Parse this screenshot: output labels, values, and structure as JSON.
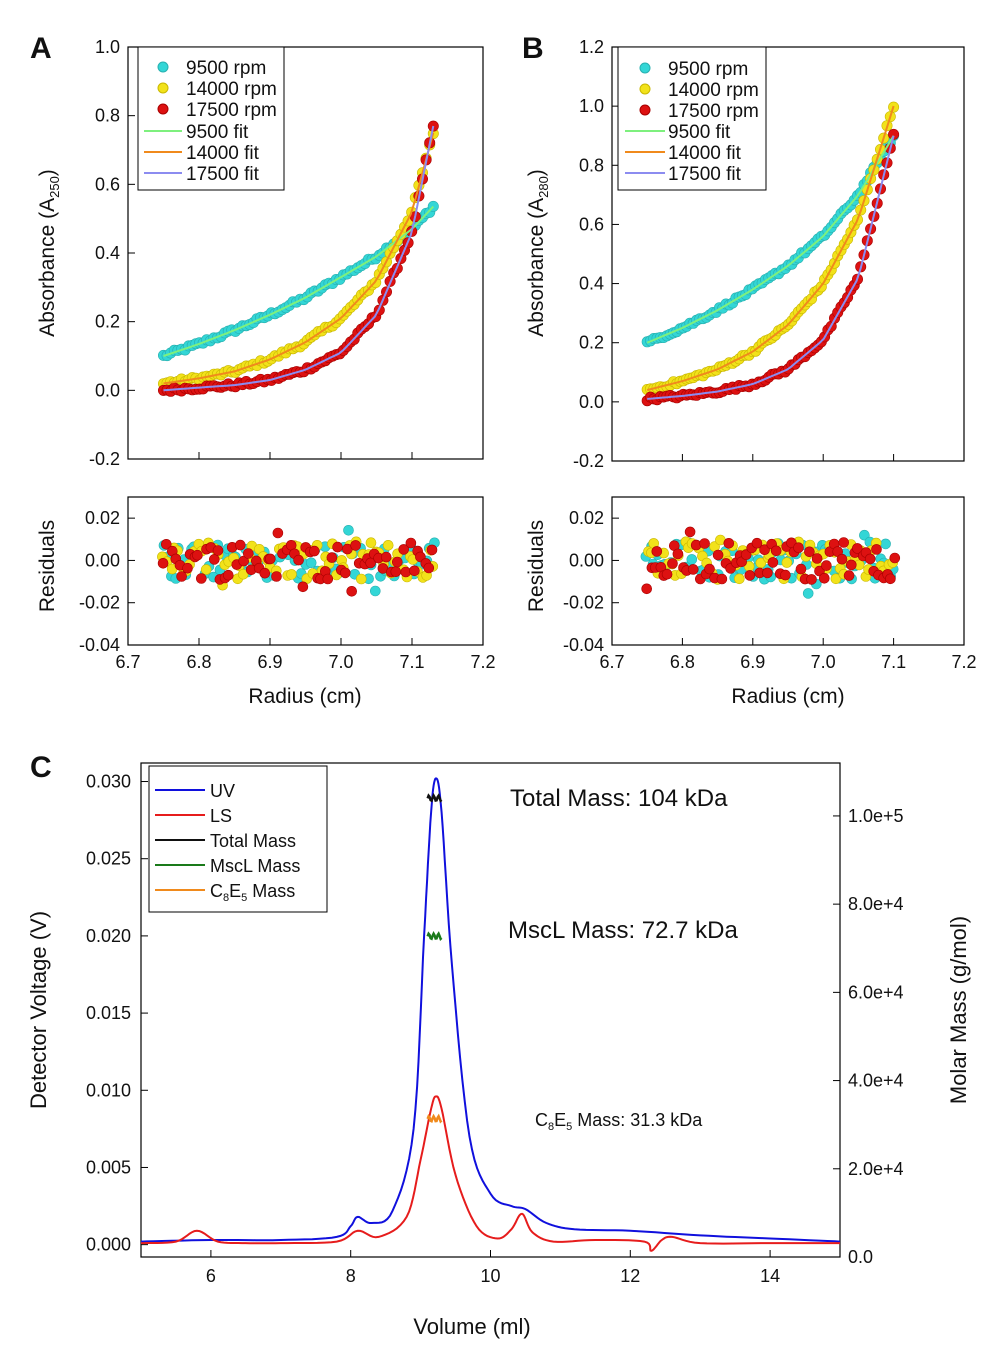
{
  "panels": {
    "a": {
      "label": "A",
      "ylabel_main": "Absorbance (A",
      "ylabel_sub": "250",
      "ylabel_end": ")"
    },
    "b": {
      "label": "B",
      "ylabel_main": "Absorbance (A",
      "ylabel_sub": "280",
      "ylabel_end": ")"
    },
    "c": {
      "label": "C"
    }
  },
  "chart_data": [
    {
      "id": "A-absorbance",
      "type": "scatter",
      "xlabel": "",
      "ylabel": "Absorbance (A250)",
      "xlim": [
        6.7,
        7.2
      ],
      "ylim": [
        -0.2,
        1.0
      ],
      "yticks": [
        -0.2,
        0.0,
        0.2,
        0.4,
        0.6,
        0.8,
        1.0
      ],
      "legend_position": "top-left",
      "legend": [
        "9500 rpm",
        "14000 rpm",
        "17500 rpm",
        "9500 fit",
        "14000 fit",
        "17500 fit"
      ],
      "colors": {
        "9500": "#33d6d6",
        "14000": "#f2e21a",
        "17500": "#dd1111",
        "9500fit": "#7ef07e",
        "14000fit": "#f08a1c",
        "17500fit": "#8c8cf0"
      },
      "series": [
        {
          "name": "9500 rpm",
          "x": [
            6.75,
            6.8,
            6.85,
            6.9,
            6.95,
            7.0,
            7.05,
            7.1,
            7.13
          ],
          "y": [
            0.1,
            0.135,
            0.175,
            0.22,
            0.27,
            0.33,
            0.39,
            0.47,
            0.535
          ]
        },
        {
          "name": "14000 rpm",
          "x": [
            6.75,
            6.8,
            6.85,
            6.9,
            6.95,
            7.0,
            7.05,
            7.1,
            7.13
          ],
          "y": [
            0.02,
            0.035,
            0.055,
            0.09,
            0.14,
            0.21,
            0.32,
            0.52,
            0.75
          ]
        },
        {
          "name": "17500 rpm",
          "x": [
            6.75,
            6.8,
            6.85,
            6.9,
            6.95,
            7.0,
            7.05,
            7.1,
            7.13
          ],
          "y": [
            0.0,
            0.008,
            0.015,
            0.03,
            0.06,
            0.11,
            0.22,
            0.46,
            0.77
          ]
        }
      ]
    },
    {
      "id": "A-residuals",
      "type": "scatter",
      "xlabel": "Radius (cm)",
      "ylabel": "Residuals",
      "xlim": [
        6.7,
        7.2
      ],
      "ylim": [
        -0.04,
        0.03
      ],
      "xticks": [
        6.7,
        6.8,
        6.9,
        7.0,
        7.1,
        7.2
      ],
      "yticks": [
        -0.04,
        -0.02,
        0.0,
        0.02
      ],
      "xrange": [
        6.75,
        7.13
      ]
    },
    {
      "id": "B-absorbance",
      "type": "scatter",
      "xlabel": "",
      "ylabel": "Absorbance (A280)",
      "xlim": [
        6.7,
        7.2
      ],
      "ylim": [
        -0.2,
        1.2
      ],
      "yticks": [
        -0.2,
        0.0,
        0.2,
        0.4,
        0.6,
        0.8,
        1.0,
        1.2
      ],
      "legend_position": "top-left",
      "legend": [
        "9500 rpm",
        "14000 rpm",
        "17500 rpm",
        "9500 fit",
        "14000 fit",
        "17500 fit"
      ],
      "series": [
        {
          "name": "9500 rpm",
          "x": [
            6.75,
            6.8,
            6.85,
            6.9,
            6.95,
            7.0,
            7.05,
            7.1
          ],
          "y": [
            0.2,
            0.25,
            0.31,
            0.38,
            0.46,
            0.56,
            0.7,
            0.9
          ]
        },
        {
          "name": "14000 rpm",
          "x": [
            6.75,
            6.8,
            6.85,
            6.9,
            6.95,
            7.0,
            7.05,
            7.1
          ],
          "y": [
            0.04,
            0.07,
            0.11,
            0.17,
            0.26,
            0.4,
            0.62,
            1.0
          ]
        },
        {
          "name": "17500 rpm",
          "x": [
            6.75,
            6.8,
            6.85,
            6.9,
            6.95,
            7.0,
            7.05,
            7.1
          ],
          "y": [
            0.01,
            0.02,
            0.035,
            0.06,
            0.11,
            0.21,
            0.42,
            0.9
          ]
        }
      ]
    },
    {
      "id": "B-residuals",
      "type": "scatter",
      "xlabel": "Radius (cm)",
      "ylabel": "Residuals",
      "xlim": [
        6.7,
        7.2
      ],
      "ylim": [
        -0.04,
        0.03
      ],
      "xticks": [
        6.7,
        6.8,
        6.9,
        7.0,
        7.1,
        7.2
      ],
      "yticks": [
        -0.04,
        -0.02,
        0.0,
        0.02
      ],
      "xrange": [
        6.75,
        7.1
      ]
    },
    {
      "id": "C-secmals",
      "type": "line",
      "xlabel": "Volume (ml)",
      "ylabel": "Detector Voltage (V)",
      "y2label": "Molar Mass (g/mol)",
      "xlim": [
        5,
        15
      ],
      "ylim": [
        -0.0008,
        0.0312
      ],
      "y2lim": [
        0,
        112000
      ],
      "xticks": [
        6,
        8,
        10,
        12,
        14
      ],
      "yticks": [
        0.0,
        0.005,
        0.01,
        0.015,
        0.02,
        0.025,
        0.03
      ],
      "ytick_labels": [
        "0.000",
        "0.005",
        "0.010",
        "0.015",
        "0.020",
        "0.025",
        "0.030"
      ],
      "y2ticks": [
        0,
        20000,
        40000,
        60000,
        80000,
        100000
      ],
      "y2tick_labels": [
        "0.0",
        "2.0e+4",
        "4.0e+4",
        "6.0e+4",
        "8.0e+4",
        "1.0e+5"
      ],
      "legend_position": "top-left",
      "legend": [
        "UV",
        "LS",
        "Total Mass",
        "MscL Mass",
        "C8E5 Mass"
      ],
      "annotations": [
        "Total Mass: 104 kDa",
        "MscL Mass: 72.7 kDa",
        "C8E5 Mass: 31.3 kDa"
      ],
      "series": [
        {
          "name": "UV",
          "color": "#1010dd",
          "x": [
            5,
            6,
            7,
            7.8,
            8.0,
            8.1,
            8.3,
            8.6,
            8.9,
            9.05,
            9.15,
            9.22,
            9.3,
            9.45,
            9.7,
            10.0,
            10.3,
            10.5,
            10.8,
            11.2,
            12,
            13,
            14,
            15
          ],
          "y": [
            0.0002,
            0.0003,
            0.0003,
            0.0005,
            0.0012,
            0.0018,
            0.0014,
            0.0022,
            0.0075,
            0.02,
            0.028,
            0.0302,
            0.028,
            0.018,
            0.007,
            0.0033,
            0.0025,
            0.0023,
            0.0014,
            0.001,
            0.0009,
            0.0006,
            0.0004,
            0.0002
          ]
        },
        {
          "name": "LS",
          "color": "#e61c1c",
          "x": [
            5,
            5.5,
            5.8,
            6.1,
            6.5,
            7,
            7.8,
            8.1,
            8.4,
            8.8,
            9.0,
            9.15,
            9.22,
            9.3,
            9.5,
            9.8,
            10.1,
            10.3,
            10.45,
            10.6,
            10.9,
            11.5,
            12.2,
            12.3,
            12.45,
            12.6,
            13,
            14,
            15
          ],
          "y": [
            0.0001,
            0.0002,
            0.0009,
            0.0002,
            0.0001,
            0.0001,
            0.0002,
            0.0009,
            0.0005,
            0.0018,
            0.0055,
            0.0088,
            0.0096,
            0.0088,
            0.0045,
            0.0012,
            0.0004,
            0.001,
            0.002,
            0.0008,
            0.0002,
            0.0003,
            0.0002,
            -0.0004,
            0.0003,
            0.0005,
            0.0001,
            0.0001,
            0.0001
          ]
        },
        {
          "name": "Total Mass",
          "color": "#111111",
          "axis": "y2",
          "x": [
            9.1,
            9.2,
            9.3
          ],
          "y": [
            104000,
            104000,
            104000
          ]
        },
        {
          "name": "MscL Mass",
          "color": "#1a7a1a",
          "axis": "y2",
          "x": [
            9.1,
            9.2,
            9.3
          ],
          "y": [
            72700,
            72700,
            72700
          ]
        },
        {
          "name": "C8E5 Mass",
          "color": "#f08a1c",
          "axis": "y2",
          "x": [
            9.1,
            9.2,
            9.3
          ],
          "y": [
            31300,
            31300,
            31300
          ]
        }
      ]
    }
  ],
  "legend_ab": {
    "s1": "9500 rpm",
    "s2": "14000 rpm",
    "s3": "17500 rpm",
    "f1": "9500 fit",
    "f2": "14000 fit",
    "f3": "17500 fit"
  },
  "legend_c": {
    "uv": "UV",
    "ls": "LS",
    "total": "Total Mass",
    "mscl": "MscL Mass",
    "c8e5_c": "C",
    "c8e5_8": "8",
    "c8e5_e": "E",
    "c8e5_5": "5",
    "c8e5_rest": " Mass"
  },
  "annot_c": {
    "total": "Total Mass: 104 kDa",
    "mscl": "MscL Mass: 72.7 kDa",
    "c8e5_c": "C",
    "c8e5_8": "8",
    "c8e5_e": "E",
    "c8e5_5": "5",
    "c8e5_rest": " Mass: 31.3 kDa"
  },
  "axis_text": {
    "radius": "Radius (cm)",
    "residuals": "Residuals",
    "volume": "Volume (ml)",
    "detector": "Detector Voltage (V)",
    "molar": "Molar Mass (g/mol)"
  }
}
